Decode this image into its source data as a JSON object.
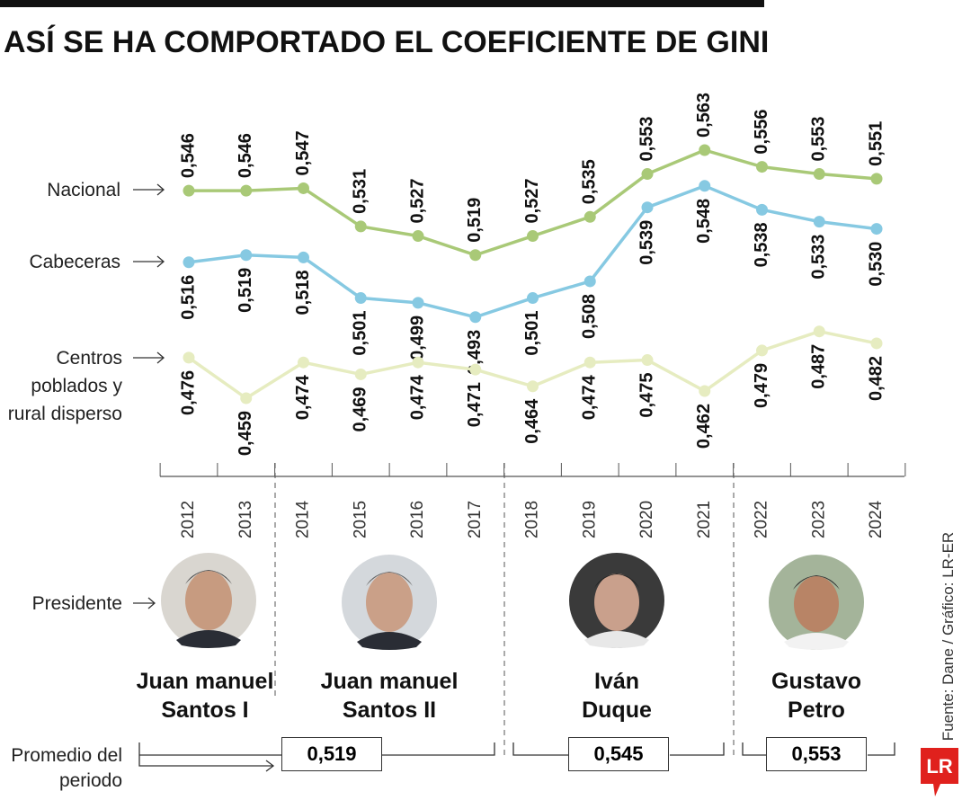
{
  "title": "ASÍ SE HA COMPORTADO EL COEFICIENTE DE GINI",
  "chart_data": {
    "type": "line",
    "categories": [
      "2012",
      "2013",
      "2014",
      "2015",
      "2016",
      "2017",
      "2018",
      "2019",
      "2020",
      "2021",
      "2022",
      "2023",
      "2024"
    ],
    "series": [
      {
        "name": "Nacional",
        "color": "#a9c977",
        "label_side": "above",
        "values": [
          0.546,
          0.546,
          0.547,
          0.531,
          0.527,
          0.519,
          0.527,
          0.535,
          0.553,
          0.563,
          0.556,
          0.553,
          0.551
        ],
        "value_labels": [
          "0,546",
          "0,546",
          "0,547",
          "0,531",
          "0,527",
          "0,519",
          "0,527",
          "0,535",
          "0,553",
          "0,563",
          "0,556",
          "0,553",
          "0,551"
        ]
      },
      {
        "name": "Cabeceras",
        "color": "#86c9e2",
        "label_side": "below",
        "values": [
          0.516,
          0.519,
          0.518,
          0.501,
          0.499,
          0.493,
          0.501,
          0.508,
          0.539,
          0.548,
          0.538,
          0.533,
          0.53
        ],
        "value_labels": [
          "0,516",
          "0,519",
          "0,518",
          "0,501",
          "0,499",
          "0,493",
          "0,501",
          "0,508",
          "0,539",
          "0,548",
          "0,538",
          "0,533",
          "0,530"
        ]
      },
      {
        "name": "Centros poblados y rural disperso",
        "color": "#e6ecc0",
        "label_side": "below",
        "values": [
          0.476,
          0.459,
          0.474,
          0.469,
          0.474,
          0.471,
          0.464,
          0.474,
          0.475,
          0.462,
          0.479,
          0.487,
          0.482
        ],
        "value_labels": [
          "0,476",
          "0,459",
          "0,474",
          "0,469",
          "0,474",
          "0,471",
          "0,464",
          "0,474",
          "0,475",
          "0,462",
          "0,479",
          "0,487",
          "0,482"
        ]
      }
    ]
  },
  "presidents": {
    "label": "Presidente",
    "names": [
      "Juan manuel Santos I",
      "Juan manuel Santos II",
      "Iván Duque",
      "Gustavo Petro"
    ]
  },
  "period_average": {
    "label": "Promedio del periodo",
    "values": [
      "0,519",
      "0,545",
      "0,553"
    ]
  },
  "source": "Fuente: Dane / Gráfico: LR-ER",
  "logo": "LR"
}
